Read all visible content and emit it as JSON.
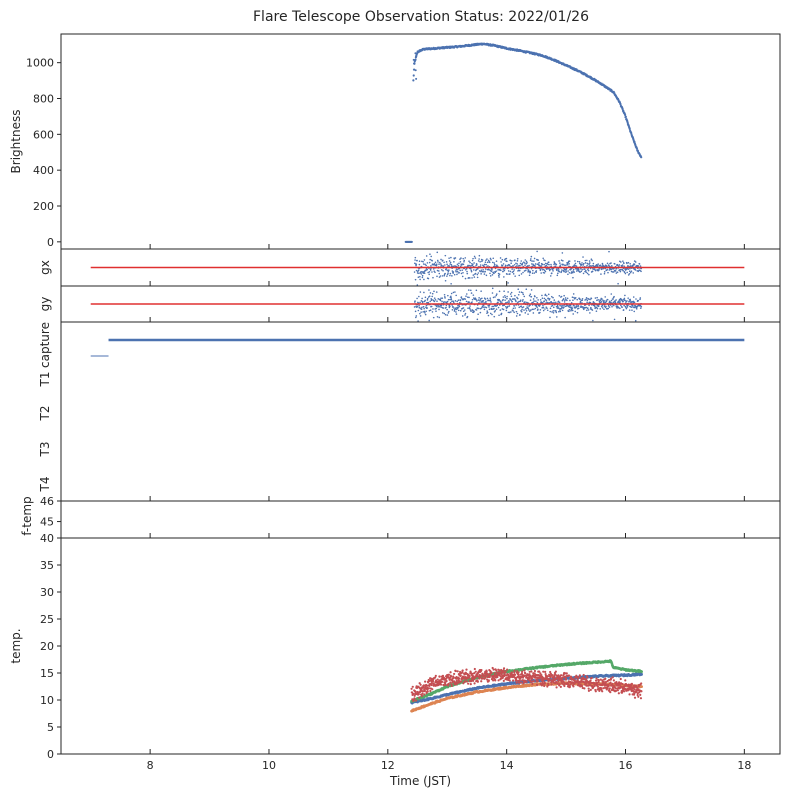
{
  "title": "Flare Telescope Observation Status: 2022/01/26",
  "colors": {
    "blue": "#4c72b0",
    "red": "#e03030",
    "orange": "#dd8452",
    "green": "#55a868",
    "darkred": "#c44e52",
    "axis": "#262626"
  },
  "chart_data": [
    {
      "id": "brightness",
      "type": "scatter",
      "ylabel": "Brightness",
      "xlim": [
        6.5,
        18.6
      ],
      "ylim": [
        -40,
        1160
      ],
      "yticks": [
        "0",
        "200",
        "400",
        "600",
        "800",
        "1000"
      ],
      "series": [
        {
          "color": "blue",
          "points": [
            [
              12.3,
              0
            ],
            [
              12.33,
              0
            ],
            [
              12.36,
              0
            ],
            [
              12.38,
              0
            ],
            [
              12.4,
              0
            ],
            [
              12.43,
              900
            ],
            [
              12.45,
              1000
            ],
            [
              12.5,
              1060
            ],
            [
              12.6,
              1075
            ],
            [
              12.8,
              1080
            ],
            [
              13.0,
              1085
            ],
            [
              13.2,
              1090
            ],
            [
              13.4,
              1098
            ],
            [
              13.6,
              1105
            ],
            [
              13.8,
              1095
            ],
            [
              14.0,
              1080
            ],
            [
              14.2,
              1068
            ],
            [
              14.4,
              1055
            ],
            [
              14.6,
              1040
            ],
            [
              14.8,
              1015
            ],
            [
              15.0,
              985
            ],
            [
              15.2,
              955
            ],
            [
              15.4,
              920
            ],
            [
              15.6,
              880
            ],
            [
              15.8,
              835
            ],
            [
              15.9,
              780
            ],
            [
              16.0,
              700
            ],
            [
              16.1,
              600
            ],
            [
              16.2,
              510
            ],
            [
              16.27,
              470
            ]
          ]
        }
      ]
    },
    {
      "id": "gx",
      "type": "scatter",
      "ylabel": "gx",
      "xlim": [
        6.5,
        18.6
      ],
      "ylim": [
        -1,
        1
      ],
      "reference_line": {
        "color": "red",
        "y": 0,
        "x": [
          7.0,
          18.0
        ]
      },
      "series": [
        {
          "color": "blue",
          "x_range": [
            12.45,
            16.27
          ],
          "spread": 0.6
        }
      ]
    },
    {
      "id": "gy",
      "type": "scatter",
      "ylabel": "gy",
      "xlim": [
        6.5,
        18.6
      ],
      "ylim": [
        -1,
        1
      ],
      "reference_line": {
        "color": "red",
        "y": 0,
        "x": [
          7.0,
          18.0
        ]
      },
      "series": [
        {
          "color": "blue",
          "x_range": [
            12.45,
            16.27
          ],
          "spread": 0.75
        }
      ]
    },
    {
      "id": "status",
      "type": "line",
      "categories": [
        "capture",
        "T1",
        "T2",
        "T3",
        "T4"
      ],
      "xlim": [
        6.5,
        18.6
      ],
      "series": [
        {
          "color": "blue",
          "category": "capture",
          "x": [
            7.3,
            18.0
          ]
        },
        {
          "color": "blue",
          "category": "T1",
          "x": [
            7.0,
            7.3
          ],
          "level": 0.6
        }
      ]
    },
    {
      "id": "f-temp",
      "type": "scatter",
      "ylabel": "f-temp",
      "xlim": [
        6.5,
        18.6
      ],
      "ylim": [
        44.2,
        46.0
      ],
      "yticks": [
        "45",
        "46"
      ],
      "series": []
    },
    {
      "id": "temp",
      "type": "scatter",
      "ylabel": "temp.",
      "xlabel": "Time (JST)",
      "xlim": [
        6.5,
        18.6
      ],
      "ylim": [
        0,
        40
      ],
      "xticks": [
        "8",
        "10",
        "12",
        "14",
        "16",
        "18"
      ],
      "yticks": [
        "0",
        "5",
        "10",
        "15",
        "20",
        "25",
        "30",
        "35",
        "40"
      ],
      "series": [
        {
          "color": "blue",
          "points": [
            [
              12.4,
              9.5
            ],
            [
              12.7,
              10.2
            ],
            [
              13.0,
              11.0
            ],
            [
              13.5,
              12.2
            ],
            [
              14.0,
              13.0
            ],
            [
              14.5,
              13.6
            ],
            [
              15.0,
              14.0
            ],
            [
              15.5,
              14.4
            ],
            [
              16.0,
              14.6
            ],
            [
              16.27,
              14.8
            ]
          ]
        },
        {
          "color": "orange",
          "points": [
            [
              12.4,
              8.0
            ],
            [
              12.7,
              9.2
            ],
            [
              13.0,
              10.3
            ],
            [
              13.5,
              11.5
            ],
            [
              14.0,
              12.3
            ],
            [
              14.5,
              12.9
            ],
            [
              15.0,
              13.1
            ],
            [
              15.5,
              13.0
            ],
            [
              16.0,
              12.7
            ],
            [
              16.27,
              12.5
            ]
          ]
        },
        {
          "color": "green",
          "points": [
            [
              12.4,
              9.8
            ],
            [
              12.7,
              11.0
            ],
            [
              13.0,
              12.5
            ],
            [
              13.5,
              14.2
            ],
            [
              14.0,
              15.3
            ],
            [
              14.5,
              16.0
            ],
            [
              15.0,
              16.6
            ],
            [
              15.5,
              17.0
            ],
            [
              15.75,
              17.2
            ],
            [
              15.8,
              16.0
            ],
            [
              16.0,
              15.6
            ],
            [
              16.27,
              15.3
            ]
          ]
        },
        {
          "color": "darkred",
          "noisy": true,
          "points": [
            [
              12.4,
              11.0
            ],
            [
              12.7,
              12.8
            ],
            [
              13.0,
              13.8
            ],
            [
              13.5,
              14.5
            ],
            [
              14.0,
              14.6
            ],
            [
              14.5,
              14.2
            ],
            [
              15.0,
              13.6
            ],
            [
              15.5,
              13.0
            ],
            [
              16.0,
              12.3
            ],
            [
              16.27,
              11.6
            ]
          ]
        }
      ]
    }
  ]
}
